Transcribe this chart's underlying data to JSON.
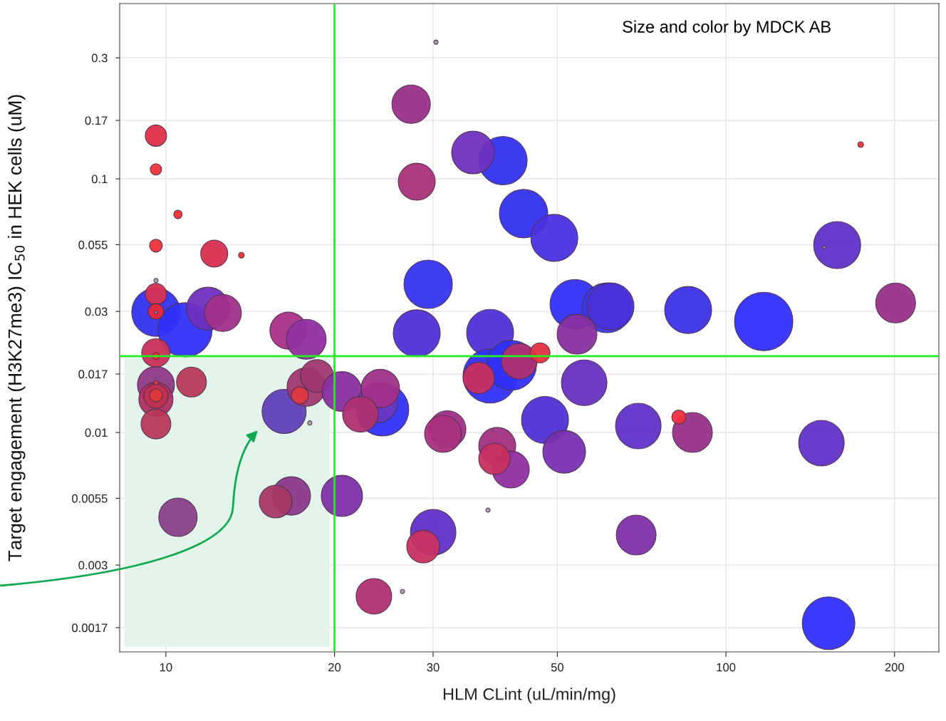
{
  "chart_data": {
    "type": "bubble",
    "xlabel": "HLM CLint (uL/min/mg)",
    "ylabel": "Target engagement (H3K27me3) IC$_{50}$ in HEK cells (uM)",
    "annotations": [
      "Size and color by MDCK AB"
    ],
    "log": "xy",
    "grid": true,
    "xlim": [
      8.27,
      240
    ],
    "ylim": [
      0.001364,
      0.491
    ],
    "xticks": [
      10,
      20,
      30,
      50,
      100,
      200
    ],
    "yticks": [
      0.0017,
      0.003,
      0.0055,
      0.01,
      0.017,
      0.03,
      0.055,
      0.1,
      0.17,
      0.3
    ],
    "ref_lines": [
      {
        "axis": "x",
        "value": 20,
        "color": "#22ee22"
      },
      {
        "axis": "y",
        "value": 0.02,
        "color": "#22ee22"
      }
    ],
    "x": [
      9.6,
      10.82,
      11.89,
      12.64,
      16.55,
      17.81,
      9.6,
      9.6,
      9.6,
      11.11,
      16.26,
      17.81,
      18.61,
      17.35,
      20.62,
      10.51,
      16.75,
      15.7,
      20.62,
      24.36,
      23.87,
      24.15,
      22.25,
      39.98,
      35.35,
      27.41,
      28.05,
      43.52,
      49.38,
      29.4,
      28.05,
      37.93,
      53.75,
      61.31,
      62.22,
      54.22,
      37.93,
      41.4,
      42.76,
      36.19,
      46.57,
      55.83,
      47.53,
      31.82,
      31.26,
      39.05,
      41.29,
      38.6,
      51.43,
      30.01,
      28.8,
      23.52,
      116.8,
      85.61,
      158.0,
      200.9,
      69.75,
      87.14,
      148.1,
      69.14,
      152.5,
      9.6,
      9.6,
      9.6,
      9.6,
      9.6,
      9.6,
      9.6,
      9.6,
      9.6,
      9.6,
      10.51,
      12.2,
      13.64,
      82.41,
      174.0,
      9.6,
      9.6,
      18.07,
      37.6,
      26.45,
      30.36,
      149.8
    ],
    "values": [
      0.0298,
      0.0254,
      0.0308,
      0.0296,
      0.0252,
      0.0233,
      0.0154,
      0.0135,
      0.0108,
      0.0158,
      0.0121,
      0.0151,
      0.0167,
      0.014,
      0.0145,
      0.00463,
      0.00562,
      0.00534,
      0.00562,
      0.0123,
      0.0131,
      0.0149,
      0.0118,
      0.118,
      0.127,
      0.197,
      0.0974,
      0.0729,
      0.0585,
      0.0384,
      0.0246,
      0.0247,
      0.032,
      0.031,
      0.0314,
      0.0244,
      0.0167,
      0.0184,
      0.0191,
      0.0164,
      0.0206,
      0.0157,
      0.0112,
      0.0103,
      0.00987,
      0.00885,
      0.00714,
      0.00787,
      0.00839,
      0.00404,
      0.00355,
      0.00226,
      0.0274,
      0.0304,
      0.0548,
      0.0324,
      0.0106,
      0.01,
      0.00908,
      0.00394,
      0.00177,
      0.148,
      0.109,
      0.0545,
      0.0351,
      0.03,
      0.0206,
      0.0139,
      0.014,
      0.0157,
      0.02,
      0.0724,
      0.0507,
      0.05,
      0.0115,
      0.1364,
      0.0397,
      0.0298,
      0.0109,
      0.00494,
      0.00236,
      0.346,
      0.0537
    ],
    "sizes": [
      0.688,
      0.859,
      0.535,
      0.402,
      0.402,
      0.466,
      0.402,
      0.343,
      0.262,
      0.262,
      0.572,
      0.434,
      0.315,
      0.086,
      0.466,
      0.434,
      0.434,
      0.315,
      0.5,
      0.814,
      0.466,
      0.434,
      0.372,
      0.688,
      0.535,
      0.434,
      0.402,
      0.688,
      0.648,
      0.688,
      0.648,
      0.648,
      0.729,
      0.729,
      0.648,
      0.466,
      0.859,
      0.729,
      0.372,
      0.288,
      0.117,
      0.609,
      0.648,
      0.402,
      0.402,
      0.402,
      0.402,
      0.288,
      0.535,
      0.609,
      0.315,
      0.372,
      1.0,
      0.648,
      0.648,
      0.466,
      0.609,
      0.466,
      0.609,
      0.466,
      0.814,
      0.134,
      0.038,
      0.048,
      0.134,
      0.072,
      0.238,
      0.172,
      0.048,
      0.0054,
      0.015,
      0.021,
      0.215,
      0.0095,
      0.059,
      0.0095,
      0.0054,
      0.0024,
      0.0054,
      0.0054,
      0.0054,
      0.0054,
      0.0024
    ],
    "colors": [
      "#3232f0",
      "#3030f8",
      "#7030c0",
      "#a03088",
      "#a83088",
      "#9030a0",
      "#903888",
      "#b03060",
      "#b83858",
      "#b83858",
      "#6040b8",
      "#a03870",
      "#a03870",
      "#e03840",
      "#8830a0",
      "#884088",
      "#8a3888",
      "#a83868",
      "#8030a8",
      "#3030f8",
      "#6838c0",
      "#a03088",
      "#b03070",
      "#3030f0",
      "#7030c0",
      "#983088",
      "#a83078",
      "#3030f0",
      "#4a30e0",
      "#3535f0",
      "#5030d8",
      "#5030d8",
      "#3030f8",
      "#3838e8",
      "#4a30d8",
      "#8830a0",
      "#3030f8",
      "#3030f8",
      "#b03070",
      "#c83060",
      "#e03040",
      "#6830c0",
      "#5030d8",
      "#a03088",
      "#a83080",
      "#a03080",
      "#9030a0",
      "#c83060",
      "#7830b0",
      "#6030c8",
      "#c83060",
      "#b03070",
      "#3030ff",
      "#3c30e8",
      "#6030c8",
      "#983088",
      "#6030c8",
      "#983088",
      "#6030c8",
      "#8030a8",
      "#3030ff",
      "#e03048",
      "#f03038",
      "#f03038",
      "#d83050",
      "#e82838",
      "#c83058",
      "#c03050",
      "#e03838",
      "#f03838",
      "#f03030",
      "#f03030",
      "#d83050",
      "#f03030",
      "#f03040",
      "#f03030",
      "#a0a0a0",
      "#a0a0a0",
      "#a0a0a0",
      "#a0a0a0",
      "#a0a0a0",
      "#a0a0a0",
      "#a0a0a0"
    ]
  }
}
